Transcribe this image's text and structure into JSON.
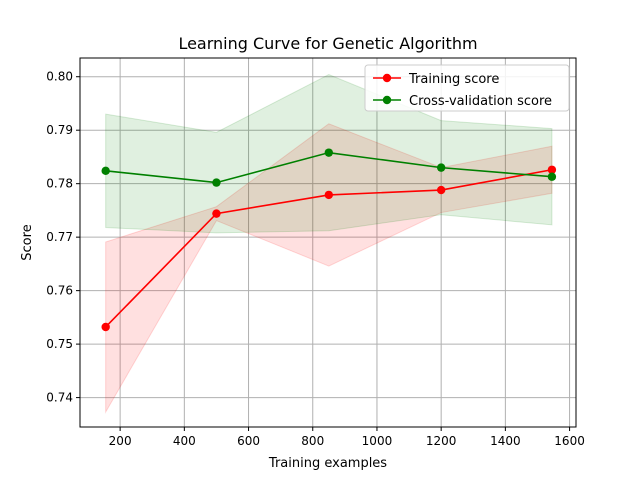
{
  "chart_data": {
    "type": "line",
    "title": "Learning Curve for Genetic Algorithm",
    "xlabel": "Training examples",
    "ylabel": "Score",
    "xlim": [
      75,
      1620
    ],
    "ylim": [
      0.7345,
      0.8035
    ],
    "x": [
      155,
      500,
      850,
      1200,
      1545
    ],
    "x_ticks": [
      200,
      400,
      600,
      800,
      1000,
      1200,
      1400,
      1600
    ],
    "y_ticks": [
      0.74,
      0.75,
      0.76,
      0.77,
      0.78,
      0.79,
      0.8
    ],
    "y_tick_labels": [
      "0.74",
      "0.75",
      "0.76",
      "0.77",
      "0.78",
      "0.79",
      "0.80"
    ],
    "grid": true,
    "legend_position": "top-right",
    "series": [
      {
        "name": "Training score",
        "color": "#ff0000",
        "band_color": "#ff0000",
        "values": [
          0.7532,
          0.7744,
          0.7779,
          0.7788,
          0.7826
        ],
        "lower": [
          0.7373,
          0.7731,
          0.7646,
          0.7746,
          0.7782
        ],
        "upper": [
          0.7691,
          0.7757,
          0.7912,
          0.783,
          0.787
        ]
      },
      {
        "name": "Cross-validation score",
        "color": "#008000",
        "band_color": "#008000",
        "values": [
          0.7824,
          0.7802,
          0.7858,
          0.783,
          0.7813
        ],
        "lower": [
          0.7718,
          0.7708,
          0.7712,
          0.7742,
          0.7723
        ],
        "upper": [
          0.793,
          0.7896,
          0.8004,
          0.7918,
          0.7903
        ]
      }
    ]
  }
}
